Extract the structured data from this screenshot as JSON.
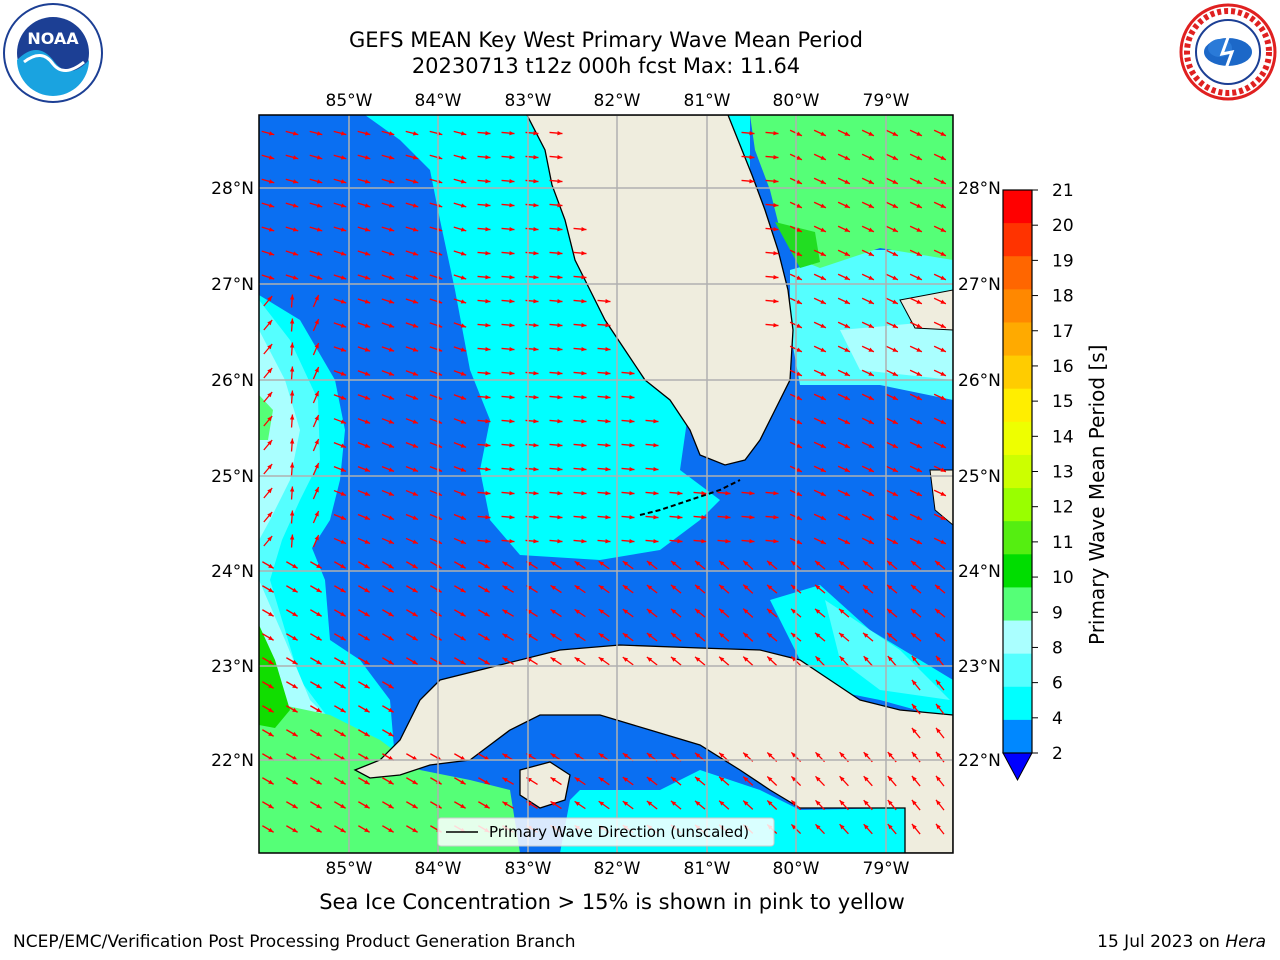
{
  "header": {
    "title": "GEFS MEAN Key West Primary Wave Mean Period",
    "subtitle": "20230713 t12z 000h fcst   Max: 11.64"
  },
  "logos": {
    "left": {
      "text": "NOAA",
      "icon": "noaa-logo"
    },
    "right": {
      "icon": "nws-logo"
    }
  },
  "map": {
    "lon_labels": [
      "85°W",
      "84°W",
      "83°W",
      "82°W",
      "81°W",
      "80°W",
      "79°W"
    ],
    "lat_labels": [
      "28°N",
      "27°N",
      "26°N",
      "25°N",
      "24°N",
      "23°N",
      "22°N"
    ],
    "legend_label": "Primary Wave Direction (unscaled)",
    "colors": {
      "land": "#efedde",
      "arrow": "#ff0000"
    }
  },
  "colorbar": {
    "title": "Primary Wave Mean Period [s]",
    "ticks": [
      "21",
      "20",
      "19",
      "18",
      "17",
      "16",
      "15",
      "14",
      "13",
      "12",
      "11",
      "10",
      "9",
      "8",
      "6",
      "4",
      "2"
    ],
    "colors": [
      "#ff0000",
      "#ff3300",
      "#ff6600",
      "#ff8800",
      "#ffaa00",
      "#ffcc00",
      "#ffee00",
      "#eeff00",
      "#ccff00",
      "#99ff00",
      "#55ee11",
      "#00dd00",
      "#55ff77",
      "#aaffff",
      "#55ffff",
      "#00ffff",
      "#0088ff",
      "#0000ff"
    ]
  },
  "notes": {
    "sea_ice": "Sea Ice Concentration > 15% is shown in pink to yellow"
  },
  "footer": {
    "left": "NCEP/EMC/Verification Post Processing Product Generation Branch",
    "right_prefix": "15 Jul 2023 on ",
    "right_emph": "Hera"
  }
}
